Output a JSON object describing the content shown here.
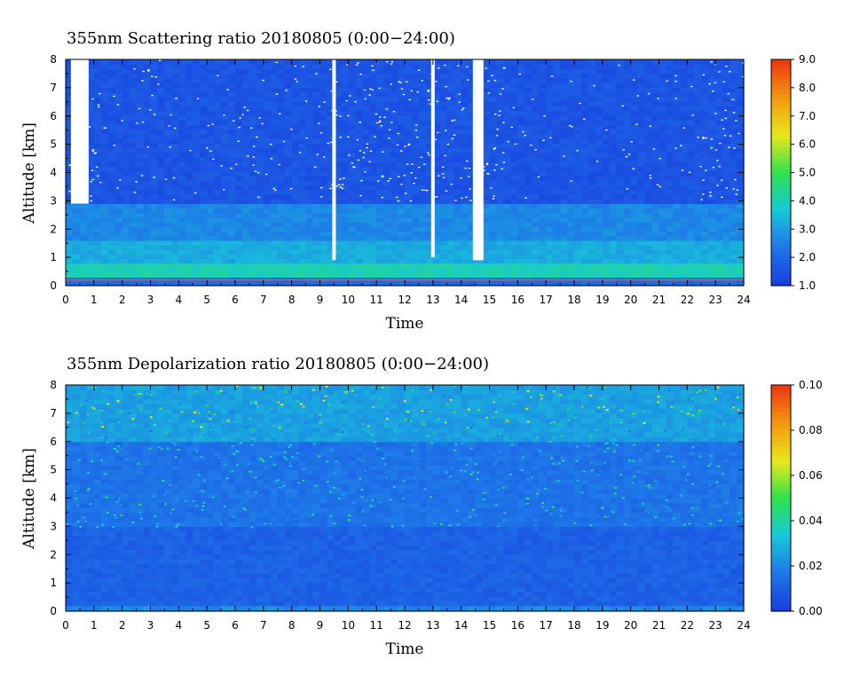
{
  "charts": [
    {
      "title": "355nm Scattering ratio  20180805 (0:00−24:00)",
      "xlabel": "Time",
      "ylabel": "Altitude [km]",
      "colorbar_ticks": [
        "1.0",
        "2.0",
        "3.0",
        "4.0",
        "5.0",
        "6.0",
        "7.0",
        "8.0",
        "9.0"
      ]
    },
    {
      "title": "355nm Depolarization ratio  20180805 (0:00−24:00)",
      "xlabel": "Time",
      "ylabel": "Altitude [km]",
      "colorbar_ticks": [
        "0.00",
        "0.02",
        "0.04",
        "0.06",
        "0.08",
        "0.10"
      ]
    }
  ],
  "chart_data": [
    {
      "type": "heatmap",
      "title": "355nm Scattering ratio  20180805 (0:00−24:00)",
      "xlabel": "Time",
      "ylabel": "Altitude [km]",
      "xlim": [
        0,
        24
      ],
      "ylim": [
        0,
        8
      ],
      "x_ticks": [
        0,
        1,
        2,
        3,
        4,
        5,
        6,
        7,
        8,
        9,
        10,
        11,
        12,
        13,
        14,
        15,
        16,
        17,
        18,
        19,
        20,
        21,
        22,
        23,
        24
      ],
      "y_ticks": [
        0,
        1,
        2,
        3,
        4,
        5,
        6,
        7,
        8
      ],
      "color_range": [
        1.0,
        9.0
      ],
      "colormap": [
        "#1a3fe0",
        "#1e78e8",
        "#18c8d8",
        "#2ee24a",
        "#e8e81a",
        "#f29a10",
        "#ee3a10"
      ],
      "missing_color": "#ffffff",
      "layers": [
        {
          "alt_min": 0.0,
          "alt_max": 0.3,
          "value": 2.0
        },
        {
          "alt_min": 0.3,
          "alt_max": 0.8,
          "value": 4.0
        },
        {
          "alt_min": 0.8,
          "alt_max": 1.6,
          "value": 3.2
        },
        {
          "alt_min": 1.6,
          "alt_max": 2.9,
          "value": 2.6
        },
        {
          "alt_min": 2.9,
          "alt_max": 8.0,
          "value": 1.5
        }
      ],
      "clouds": [
        {
          "time": 9.5,
          "alt_min": 0.9,
          "alt_max": 8.0
        },
        {
          "time": 13.0,
          "alt_min": 1.0,
          "alt_max": 8.0
        },
        {
          "time": 14.6,
          "alt_min": 0.9,
          "alt_max": 8.0
        },
        {
          "time": 0.5,
          "alt_min": 2.9,
          "alt_max": 8.0
        }
      ]
    },
    {
      "type": "heatmap",
      "title": "355nm Depolarization ratio  20180805 (0:00−24:00)",
      "xlabel": "Time",
      "ylabel": "Altitude [km]",
      "xlim": [
        0,
        24
      ],
      "ylim": [
        0,
        8
      ],
      "x_ticks": [
        0,
        1,
        2,
        3,
        4,
        5,
        6,
        7,
        8,
        9,
        10,
        11,
        12,
        13,
        14,
        15,
        16,
        17,
        18,
        19,
        20,
        21,
        22,
        23,
        24
      ],
      "y_ticks": [
        0,
        1,
        2,
        3,
        4,
        5,
        6,
        7,
        8
      ],
      "color_range": [
        0.0,
        0.1
      ],
      "colormap": [
        "#1a3fe0",
        "#1e78e8",
        "#18c8d8",
        "#2ee24a",
        "#e8e81a",
        "#f29a10",
        "#ee3a10"
      ],
      "layers": [
        {
          "alt_min": 0.0,
          "alt_max": 0.2,
          "value": 0.02
        },
        {
          "alt_min": 0.2,
          "alt_max": 3.0,
          "value": 0.01
        },
        {
          "alt_min": 3.0,
          "alt_max": 6.0,
          "value": 0.015
        },
        {
          "alt_min": 6.0,
          "alt_max": 8.0,
          "value": 0.025
        }
      ]
    }
  ]
}
